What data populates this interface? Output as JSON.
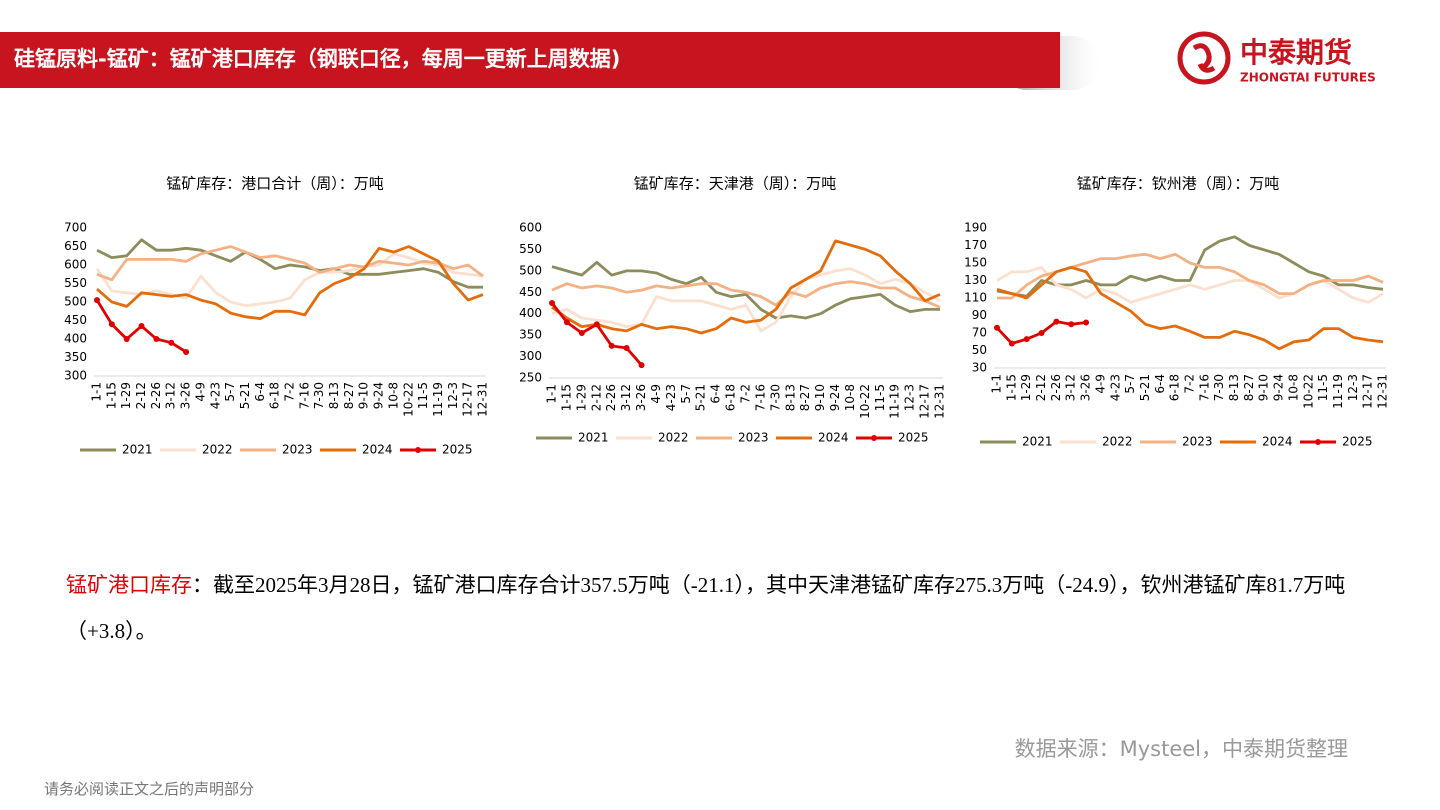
{
  "header": {
    "title": "硅锰原料-锰矿：锰矿港口库存（钢联口径，每周一更新上周数据)"
  },
  "logo": {
    "name": "中泰期货",
    "name_en": "ZHONGTAI FUTURES"
  },
  "chart_data": [
    {
      "type": "line",
      "title": "锰矿库存：港口合计（周）：万吨",
      "legend": "bottom",
      "categories": [
        "1-1",
        "1-15",
        "1-29",
        "2-12",
        "2-26",
        "3-12",
        "3-26",
        "4-9",
        "4-23",
        "5-7",
        "5-21",
        "6-4",
        "6-18",
        "7-2",
        "7-16",
        "7-30",
        "8-13",
        "8-27",
        "9-10",
        "9-24",
        "10-8",
        "10-22",
        "11-5",
        "11-19",
        "12-3",
        "12-17",
        "12-31"
      ],
      "ylim": [
        300,
        700
      ],
      "yticks": [
        300,
        350,
        400,
        450,
        500,
        550,
        600,
        650,
        700
      ],
      "series": [
        {
          "name": "2021",
          "color": "#8c8c5c",
          "values": [
            640,
            620,
            625,
            668,
            640,
            640,
            645,
            640,
            625,
            610,
            635,
            615,
            590,
            600,
            595,
            585,
            590,
            575,
            575,
            575,
            580,
            585,
            590,
            580,
            555,
            540,
            540
          ]
        },
        {
          "name": "2022",
          "color": "#fbe0d0",
          "values": [
            590,
            530,
            525,
            520,
            530,
            520,
            510,
            570,
            525,
            500,
            490,
            495,
            500,
            510,
            560,
            580,
            580,
            585,
            595,
            600,
            630,
            620,
            605,
            600,
            580,
            575,
            570
          ]
        },
        {
          "name": "2023",
          "color": "#f4b183",
          "values": [
            575,
            560,
            615,
            615,
            615,
            615,
            610,
            630,
            640,
            650,
            635,
            620,
            625,
            615,
            605,
            580,
            590,
            600,
            595,
            610,
            605,
            600,
            610,
            605,
            590,
            600,
            570
          ]
        },
        {
          "name": "2024",
          "color": "#e46c0a",
          "values": [
            535,
            500,
            488,
            525,
            520,
            515,
            520,
            505,
            495,
            470,
            460,
            455,
            475,
            475,
            465,
            525,
            550,
            565,
            590,
            645,
            635,
            650,
            630,
            610,
            550,
            505,
            520
          ]
        },
        {
          "name": "2025",
          "color": "#e00000",
          "marker": true,
          "values": [
            505,
            440,
            400,
            435,
            400,
            390,
            365,
            null,
            null,
            null,
            null,
            null,
            null,
            null,
            null,
            null,
            null,
            null,
            null,
            null,
            null,
            null,
            null,
            null,
            null,
            null,
            null
          ]
        }
      ]
    },
    {
      "type": "line",
      "title": "锰矿库存：天津港（周）：万吨",
      "legend": "bottom",
      "categories": [
        "1-1",
        "1-15",
        "1-29",
        "2-12",
        "2-26",
        "3-12",
        "3-26",
        "4-9",
        "4-23",
        "5-7",
        "5-21",
        "6-4",
        "6-18",
        "7-2",
        "7-16",
        "7-30",
        "8-13",
        "8-27",
        "9-10",
        "9-24",
        "10-8",
        "10-22",
        "11-5",
        "11-19",
        "12-3",
        "12-17",
        "12-31"
      ],
      "ylim": [
        250,
        600
      ],
      "yticks": [
        250,
        300,
        350,
        400,
        450,
        500,
        550,
        600
      ],
      "series": [
        {
          "name": "2021",
          "color": "#8c8c5c",
          "values": [
            510,
            500,
            490,
            520,
            490,
            500,
            500,
            495,
            480,
            470,
            485,
            450,
            440,
            445,
            410,
            390,
            395,
            390,
            400,
            420,
            435,
            440,
            445,
            420,
            405,
            410,
            410
          ]
        },
        {
          "name": "2022",
          "color": "#fbe0d0",
          "values": [
            400,
            410,
            390,
            385,
            380,
            370,
            375,
            440,
            430,
            430,
            430,
            420,
            410,
            420,
            360,
            380,
            440,
            480,
            490,
            500,
            505,
            490,
            470,
            480,
            470,
            450,
            430
          ]
        },
        {
          "name": "2023",
          "color": "#f4b183",
          "values": [
            455,
            470,
            460,
            465,
            460,
            450,
            455,
            465,
            460,
            465,
            470,
            470,
            455,
            450,
            440,
            420,
            450,
            440,
            460,
            470,
            475,
            470,
            460,
            460,
            440,
            430,
            415
          ]
        },
        {
          "name": "2024",
          "color": "#e46c0a",
          "values": [
            415,
            390,
            370,
            375,
            365,
            360,
            375,
            365,
            370,
            365,
            355,
            365,
            390,
            380,
            385,
            410,
            460,
            480,
            500,
            570,
            560,
            550,
            535,
            500,
            470,
            430,
            445
          ]
        },
        {
          "name": "2025",
          "color": "#e00000",
          "marker": true,
          "values": [
            425,
            380,
            355,
            375,
            325,
            320,
            280,
            null,
            null,
            null,
            null,
            null,
            null,
            null,
            null,
            null,
            null,
            null,
            null,
            null,
            null,
            null,
            null,
            null,
            null,
            null,
            null
          ]
        }
      ]
    },
    {
      "type": "line",
      "title": "锰矿库存：钦州港（周）：万吨",
      "legend": "bottom",
      "categories": [
        "1-1",
        "1-15",
        "1-29",
        "2-12",
        "2-26",
        "3-12",
        "3-26",
        "4-9",
        "4-23",
        "5-7",
        "5-21",
        "6-4",
        "6-18",
        "7-2",
        "7-16",
        "7-30",
        "8-13",
        "8-27",
        "9-10",
        "9-24",
        "10-8",
        "10-22",
        "11-5",
        "11-19",
        "12-3",
        "12-17",
        "12-31"
      ],
      "ylim": [
        30,
        190
      ],
      "yticks": [
        30,
        50,
        70,
        90,
        110,
        130,
        150,
        170,
        190
      ],
      "series": [
        {
          "name": "2021",
          "color": "#8c8c5c",
          "values": [
            118,
            115,
            112,
            130,
            125,
            125,
            130,
            125,
            125,
            135,
            130,
            135,
            130,
            130,
            165,
            175,
            180,
            170,
            165,
            160,
            150,
            140,
            135,
            125,
            125,
            122,
            120
          ]
        },
        {
          "name": "2022",
          "color": "#fbe0d0",
          "values": [
            130,
            140,
            140,
            145,
            125,
            120,
            110,
            120,
            115,
            105,
            110,
            115,
            120,
            125,
            120,
            125,
            130,
            130,
            120,
            110,
            115,
            125,
            130,
            120,
            110,
            105,
            115
          ]
        },
        {
          "name": "2023",
          "color": "#f4b183",
          "values": [
            110,
            110,
            125,
            135,
            140,
            145,
            150,
            155,
            155,
            158,
            160,
            155,
            160,
            150,
            145,
            145,
            140,
            130,
            125,
            115,
            115,
            125,
            130,
            130,
            130,
            135,
            128
          ]
        },
        {
          "name": "2024",
          "color": "#e46c0a",
          "values": [
            120,
            115,
            110,
            125,
            140,
            145,
            140,
            115,
            105,
            95,
            80,
            75,
            78,
            72,
            65,
            65,
            72,
            68,
            62,
            52,
            60,
            62,
            75,
            75,
            65,
            62,
            60
          ]
        },
        {
          "name": "2025",
          "color": "#e00000",
          "marker": true,
          "values": [
            76,
            58,
            63,
            70,
            83,
            80,
            82,
            null,
            null,
            null,
            null,
            null,
            null,
            null,
            null,
            null,
            null,
            null,
            null,
            null,
            null,
            null,
            null,
            null,
            null,
            null,
            null
          ]
        }
      ]
    }
  ],
  "summary": {
    "label": "锰矿港口库存",
    "text": "：截至2025年3月28日，锰矿港口库存合计357.5万吨（-21.1），其中天津港锰矿库存275.3万吨（-24.9），钦州港锰矿库81.7万吨（+3.8）。"
  },
  "source": "数据来源：Mysteel，中泰期货整理",
  "footer": "请务必阅读正文之后的声明部分"
}
